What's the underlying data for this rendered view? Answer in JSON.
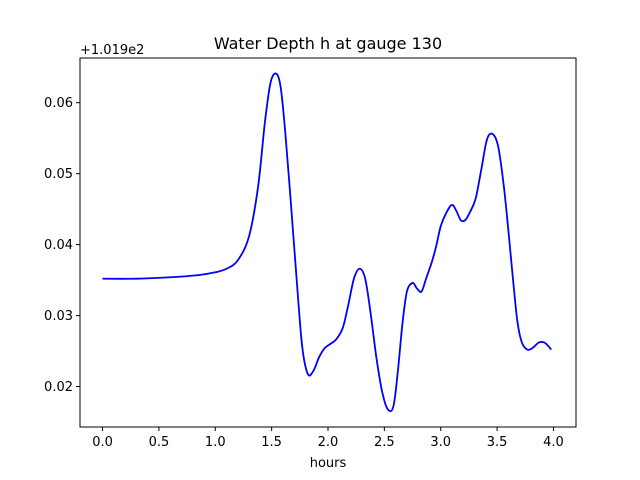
{
  "chart_data": {
    "type": "line",
    "title": "Water Depth h at gauge 130",
    "xlabel": "hours",
    "ylabel": "",
    "y_offset_text": "+1.019e2",
    "xlim": [
      -0.2,
      4.2
    ],
    "ylim": [
      0.0143,
      0.0663
    ],
    "x_ticks": [
      0.0,
      0.5,
      1.0,
      1.5,
      2.0,
      2.5,
      3.0,
      3.5,
      4.0
    ],
    "x_tick_labels": [
      "0.0",
      "0.5",
      "1.0",
      "1.5",
      "2.0",
      "2.5",
      "3.0",
      "3.5",
      "4.0"
    ],
    "y_ticks": [
      0.02,
      0.03,
      0.04,
      0.05,
      0.06
    ],
    "y_tick_labels": [
      "0.02",
      "0.03",
      "0.04",
      "0.05",
      "0.06"
    ],
    "grid": false,
    "series": [
      {
        "color": "#0000ff",
        "x": [
          0.0,
          0.3,
          0.6,
          0.85,
          1.0,
          1.1,
          1.2,
          1.3,
          1.38,
          1.44,
          1.49,
          1.54,
          1.58,
          1.62,
          1.67,
          1.72,
          1.77,
          1.82,
          1.87,
          1.92,
          1.97,
          2.02,
          2.07,
          2.13,
          2.18,
          2.23,
          2.28,
          2.33,
          2.38,
          2.43,
          2.48,
          2.53,
          2.58,
          2.62,
          2.66,
          2.7,
          2.75,
          2.79,
          2.83,
          2.87,
          2.92,
          2.96,
          3.0,
          3.05,
          3.1,
          3.14,
          3.18,
          3.22,
          3.26,
          3.31,
          3.36,
          3.41,
          3.46,
          3.51,
          3.56,
          3.6,
          3.64,
          3.68,
          3.72,
          3.77,
          3.82,
          3.87,
          3.92,
          3.96,
          3.98
        ],
        "y": [
          0.0352,
          0.0352,
          0.0354,
          0.0357,
          0.0361,
          0.0366,
          0.0378,
          0.0412,
          0.0482,
          0.0572,
          0.0628,
          0.0641,
          0.0622,
          0.056,
          0.046,
          0.0355,
          0.0258,
          0.0218,
          0.0222,
          0.0241,
          0.0254,
          0.026,
          0.0266,
          0.0282,
          0.0315,
          0.0352,
          0.0366,
          0.0352,
          0.0301,
          0.024,
          0.0193,
          0.0168,
          0.0172,
          0.0222,
          0.0288,
          0.0334,
          0.0346,
          0.0338,
          0.0334,
          0.0352,
          0.0375,
          0.0398,
          0.0426,
          0.0445,
          0.0456,
          0.0447,
          0.0434,
          0.0435,
          0.0446,
          0.0465,
          0.0506,
          0.0548,
          0.0556,
          0.0538,
          0.0482,
          0.042,
          0.0353,
          0.0292,
          0.0262,
          0.0252,
          0.0255,
          0.0262,
          0.0262,
          0.0256,
          0.0252
        ]
      }
    ]
  }
}
